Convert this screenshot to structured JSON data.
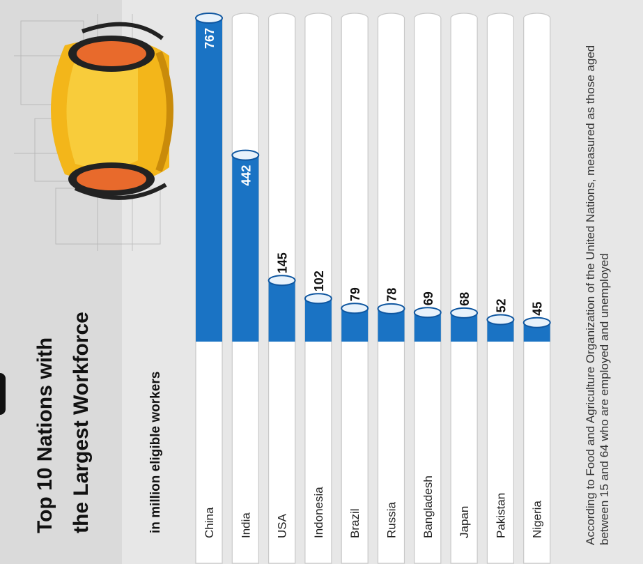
{
  "chart_data": {
    "type": "bar",
    "title": "Top 10 Nations with the Largest Workforce",
    "title_lines": [
      "Top 10 Nations with",
      "the Largest Workforce"
    ],
    "subtitle": "in million eligible workers",
    "categories": [
      "China",
      "India",
      "USA",
      "Indonesia",
      "Brazil",
      "Russia",
      "Bangladesh",
      "Japan",
      "Pakistan",
      "Nigeria"
    ],
    "values": [
      767,
      442,
      145,
      102,
      79,
      78,
      69,
      68,
      52,
      45
    ],
    "value_labels": [
      "767",
      "442",
      "145",
      "102",
      "79",
      "78",
      "69",
      "68",
      "52",
      "45"
    ],
    "ylim": [
      0,
      767
    ],
    "grid": false,
    "legend": "none",
    "footnote": "According to Food and Agriculture Organization of the United Nations, measured as those aged between 15 and 64 who are employed and unemployed",
    "colors": {
      "fill": "#1a73c4",
      "fill_dark": "#0e56a0",
      "track": "#ffffff",
      "track_border": "#c8c8c8"
    }
  }
}
